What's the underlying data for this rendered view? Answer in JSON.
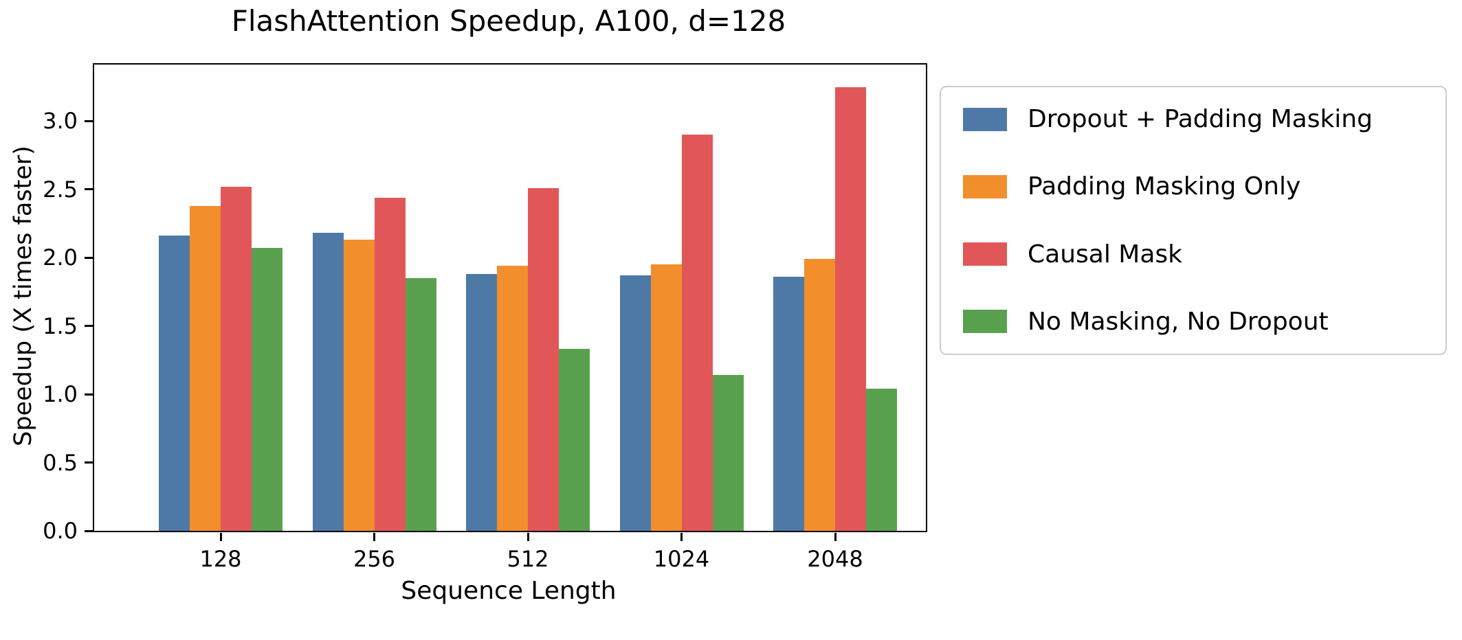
{
  "chart_data": {
    "type": "bar",
    "title": "FlashAttention Speedup, A100, d=128",
    "xlabel": "Sequence Length",
    "ylabel": "Speedup (X times faster)",
    "categories": [
      "128",
      "256",
      "512",
      "1024",
      "2048"
    ],
    "series": [
      {
        "name": "Dropout + Padding Masking",
        "color": "#4E79A7",
        "values": [
          2.16,
          2.18,
          1.88,
          1.87,
          1.86
        ]
      },
      {
        "name": "Padding Masking Only",
        "color": "#F28E2B",
        "values": [
          2.38,
          2.13,
          1.94,
          1.95,
          1.99
        ]
      },
      {
        "name": "Causal Mask",
        "color": "#E15759",
        "values": [
          2.52,
          2.44,
          2.51,
          2.9,
          3.25
        ]
      },
      {
        "name": "No Masking, No Dropout",
        "color": "#59A14F",
        "values": [
          2.07,
          1.85,
          1.33,
          1.14,
          1.04
        ]
      }
    ],
    "ylim": [
      0,
      3.414
    ],
    "yticks": [
      "0.0",
      "0.5",
      "1.0",
      "1.5",
      "2.0",
      "2.5",
      "3.0"
    ],
    "grid": false,
    "legend_position": "outside-right",
    "frame_color": "#000000",
    "background_color": "#ffffff"
  }
}
